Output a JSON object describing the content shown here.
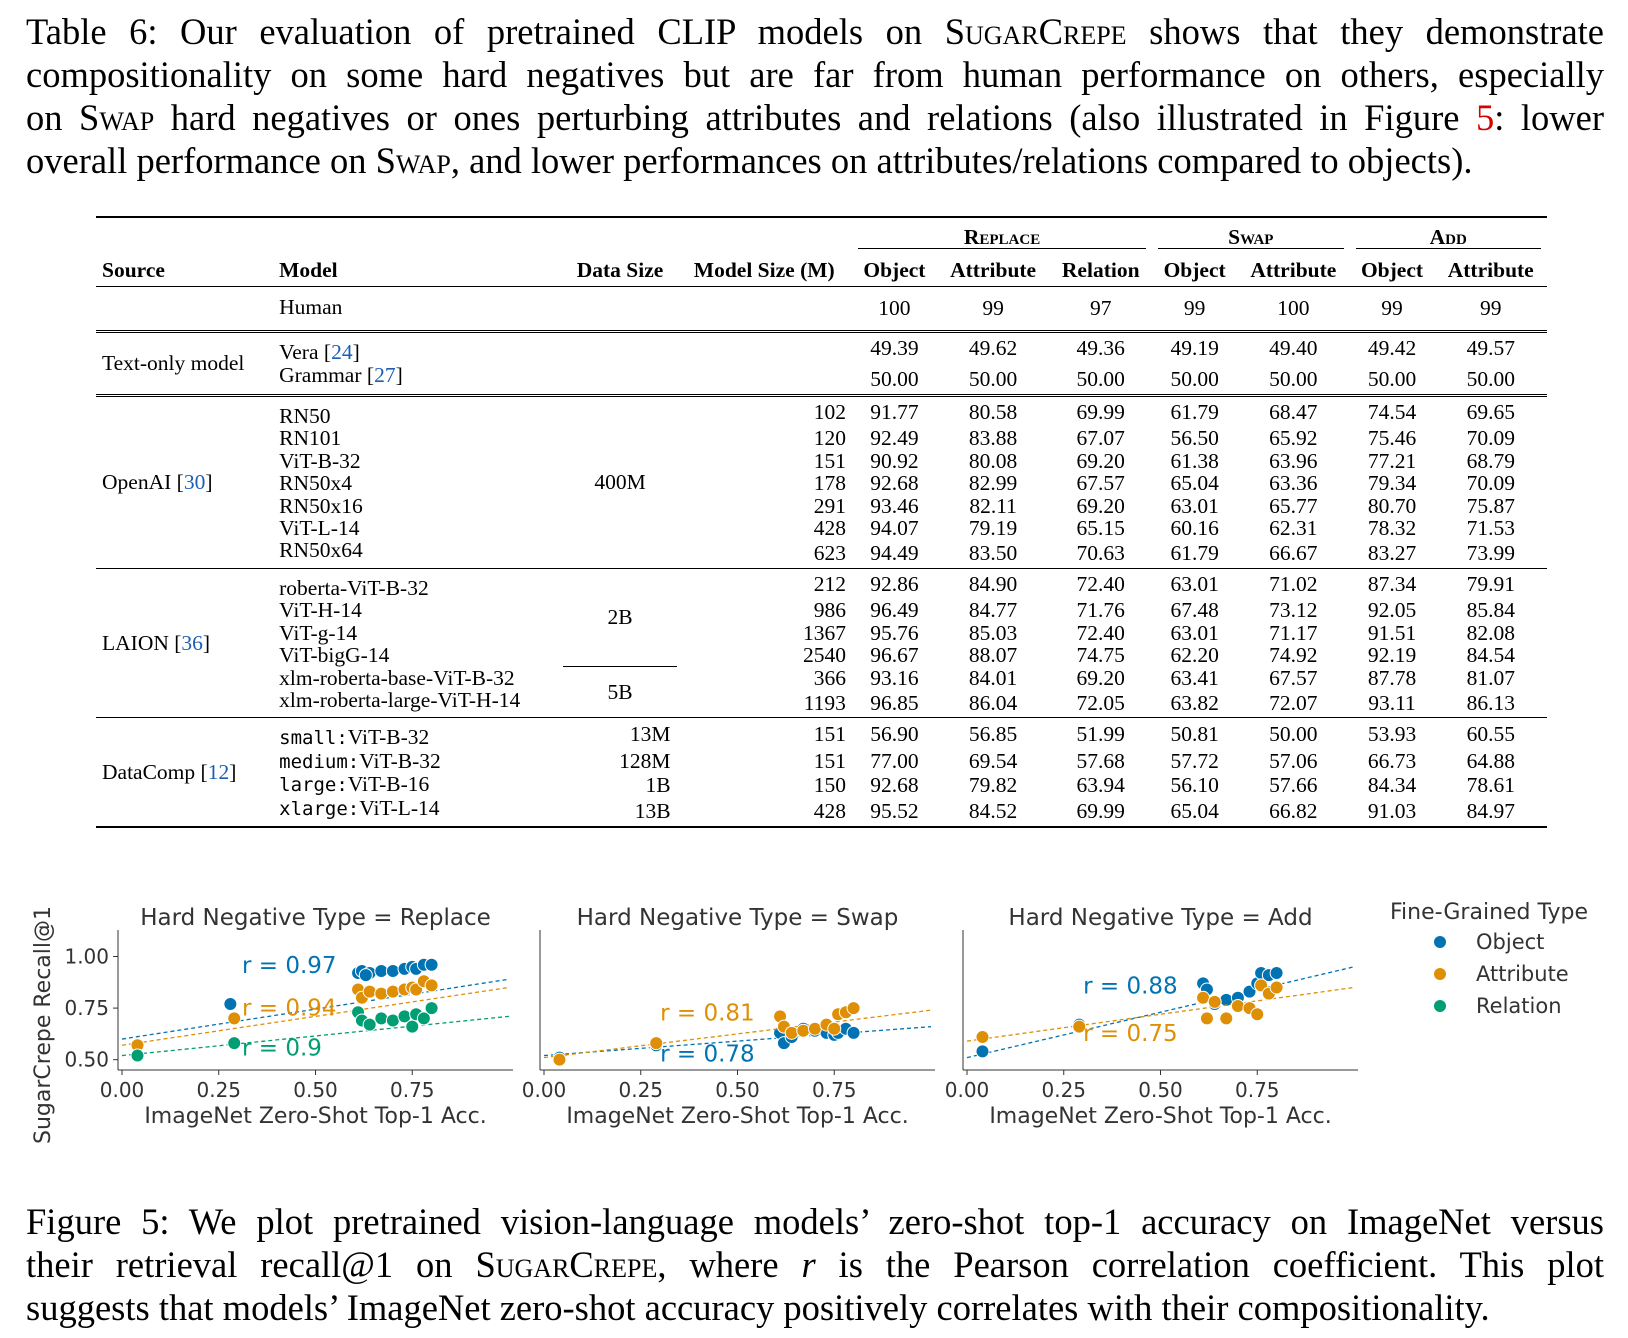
{
  "table_caption": {
    "lines": [
      "Table 6: Our evaluation of pretrained CLIP models on SUGARCREPE shows that they demonstrate",
      "compositionality on some hard negatives but are far from human performance on others, especially",
      "on SWAP hard negatives or ones perturbing attributes and relations (also illustrated in Figure 5: lower",
      "overall performance on SWAP, and lower performances on attributes/relations compared to objects)."
    ],
    "p1a": "Table 6: Our evaluation of pretrained CLIP models on ",
    "p1b": "SugarCrepe",
    "p1c": " shows that they demonstrate",
    "p2": "compositionality on some hard negatives but are far from human performance on others, especially",
    "p3a": "on ",
    "p3b": "Swap",
    "p3c": " hard negatives or ones perturbing attributes and relations (also illustrated in Figure ",
    "p3d": "5",
    "p3e": ": lower",
    "p4a": "overall performance on ",
    "p4b": "Swap",
    "p4c": ", and lower performances on attributes/relations compared to objects)."
  },
  "table": {
    "group_headers": {
      "replace": "Replace",
      "swap": "Swap",
      "add": "Add"
    },
    "columns": {
      "source": "Source",
      "model": "Model",
      "data_size": "Data Size",
      "model_size": "Model Size (M)",
      "r_object": "Object",
      "r_attribute": "Attribute",
      "r_relation": "Relation",
      "s_object": "Object",
      "s_attribute": "Attribute",
      "a_object": "Object",
      "a_attribute": "Attribute"
    },
    "human": {
      "model": "Human",
      "values": [
        "100",
        "99",
        "97",
        "99",
        "100",
        "99",
        "99"
      ]
    },
    "text_only": {
      "source": "Text-only model",
      "rows": [
        {
          "name": "Vera",
          "ref": "24",
          "values": [
            "49.39",
            "49.62",
            "49.36",
            "49.19",
            "49.40",
            "49.42",
            "49.57"
          ]
        },
        {
          "name": "Grammar",
          "ref": "27",
          "values": [
            "50.00",
            "50.00",
            "50.00",
            "50.00",
            "50.00",
            "50.00",
            "50.00"
          ]
        }
      ]
    },
    "openai": {
      "source": "OpenAI",
      "ref": "30",
      "data_size": "400M",
      "rows": [
        {
          "model": "RN50",
          "size": "102",
          "values": [
            "91.77",
            "80.58",
            "69.99",
            "61.79",
            "68.47",
            "74.54",
            "69.65"
          ]
        },
        {
          "model": "RN101",
          "size": "120",
          "values": [
            "92.49",
            "83.88",
            "67.07",
            "56.50",
            "65.92",
            "75.46",
            "70.09"
          ]
        },
        {
          "model": "ViT-B-32",
          "size": "151",
          "values": [
            "90.92",
            "80.08",
            "69.20",
            "61.38",
            "63.96",
            "77.21",
            "68.79"
          ]
        },
        {
          "model": "RN50x4",
          "size": "178",
          "values": [
            "92.68",
            "82.99",
            "67.57",
            "65.04",
            "63.36",
            "79.34",
            "70.09"
          ]
        },
        {
          "model": "RN50x16",
          "size": "291",
          "values": [
            "93.46",
            "82.11",
            "69.20",
            "63.01",
            "65.77",
            "80.70",
            "75.87"
          ]
        },
        {
          "model": "ViT-L-14",
          "size": "428",
          "values": [
            "94.07",
            "79.19",
            "65.15",
            "60.16",
            "62.31",
            "78.32",
            "71.53"
          ]
        },
        {
          "model": "RN50x64",
          "size": "623",
          "values": [
            "94.49",
            "83.50",
            "70.63",
            "61.79",
            "66.67",
            "83.27",
            "73.99"
          ]
        }
      ]
    },
    "laion": {
      "source": "LAION",
      "ref": "36",
      "data_size_a": "2B",
      "data_size_b": "5B",
      "rows": [
        {
          "model": "roberta-ViT-B-32",
          "size": "212",
          "values": [
            "92.86",
            "84.90",
            "72.40",
            "63.01",
            "71.02",
            "87.34",
            "79.91"
          ]
        },
        {
          "model": "ViT-H-14",
          "size": "986",
          "values": [
            "96.49",
            "84.77",
            "71.76",
            "67.48",
            "73.12",
            "92.05",
            "85.84"
          ]
        },
        {
          "model": "ViT-g-14",
          "size": "1367",
          "values": [
            "95.76",
            "85.03",
            "72.40",
            "63.01",
            "71.17",
            "91.51",
            "82.08"
          ]
        },
        {
          "model": "ViT-bigG-14",
          "size": "2540",
          "values": [
            "96.67",
            "88.07",
            "74.75",
            "62.20",
            "74.92",
            "92.19",
            "84.54"
          ]
        },
        {
          "model": "xlm-roberta-base-ViT-B-32",
          "size": "366",
          "values": [
            "93.16",
            "84.01",
            "69.20",
            "63.41",
            "67.57",
            "87.78",
            "81.07"
          ]
        },
        {
          "model": "xlm-roberta-large-ViT-H-14",
          "size": "1193",
          "values": [
            "96.85",
            "86.04",
            "72.05",
            "63.82",
            "72.07",
            "93.11",
            "86.13"
          ]
        }
      ]
    },
    "datacomp": {
      "source": "DataComp",
      "ref": "12",
      "rows": [
        {
          "prefix": "small",
          "model": "ViT-B-32",
          "data_size": "13M",
          "size": "151",
          "values": [
            "56.90",
            "56.85",
            "51.99",
            "50.81",
            "50.00",
            "53.93",
            "60.55"
          ]
        },
        {
          "prefix": "medium",
          "model": "ViT-B-32",
          "data_size": "128M",
          "size": "151",
          "values": [
            "77.00",
            "69.54",
            "57.68",
            "57.72",
            "57.06",
            "66.73",
            "64.88"
          ]
        },
        {
          "prefix": "large",
          "model": "ViT-B-16",
          "data_size": "1B",
          "size": "150",
          "values": [
            "92.68",
            "79.82",
            "63.94",
            "56.10",
            "57.66",
            "84.34",
            "78.61"
          ]
        },
        {
          "prefix": "xlarge",
          "model": "ViT-L-14",
          "data_size": "13B",
          "size": "428",
          "values": [
            "95.52",
            "84.52",
            "69.99",
            "65.04",
            "66.82",
            "91.03",
            "84.97"
          ]
        }
      ]
    }
  },
  "chart_data": {
    "type": "scatter",
    "xlabel": "ImageNet Zero-Shot Top-1 Acc.",
    "ylabel": "SugarCrepe Recall@1",
    "xlim": [
      0,
      1
    ],
    "ylim": [
      0.45,
      1.08
    ],
    "xticks": [
      "0.00",
      "0.25",
      "0.50",
      "0.75"
    ],
    "yticks": [
      "0.50",
      "0.75",
      "1.00"
    ],
    "legend": {
      "title": "Fine-Grained Type",
      "placement": "right",
      "entries": [
        "Object",
        "Attribute",
        "Relation"
      ]
    },
    "colors": {
      "Object": "#0173b2",
      "Attribute": "#de8f05",
      "Relation": "#029e73"
    },
    "panels": [
      {
        "title": "Hard Negative Type = Replace",
        "series": [
          {
            "name": "Object",
            "r_label": "r = 0.97",
            "fit": [
              0.6,
              0.89
            ],
            "points": [
              [
                0.28,
                0.77
              ],
              [
                0.61,
                0.92
              ],
              [
                0.62,
                0.93
              ],
              [
                0.64,
                0.92
              ],
              [
                0.67,
                0.93
              ],
              [
                0.7,
                0.93
              ],
              [
                0.73,
                0.94
              ],
              [
                0.75,
                0.95
              ],
              [
                0.76,
                0.94
              ],
              [
                0.78,
                0.96
              ],
              [
                0.8,
                0.96
              ],
              [
                0.63,
                0.91
              ]
            ]
          },
          {
            "name": "Attribute",
            "r_label": "r = 0.94",
            "fit": [
              0.57,
              0.85
            ],
            "points": [
              [
                0.04,
                0.57
              ],
              [
                0.29,
                0.7
              ],
              [
                0.61,
                0.84
              ],
              [
                0.62,
                0.8
              ],
              [
                0.64,
                0.83
              ],
              [
                0.67,
                0.82
              ],
              [
                0.7,
                0.83
              ],
              [
                0.73,
                0.84
              ],
              [
                0.75,
                0.85
              ],
              [
                0.76,
                0.84
              ],
              [
                0.78,
                0.88
              ],
              [
                0.8,
                0.86
              ]
            ]
          },
          {
            "name": "Relation",
            "r_label": "r = 0.9",
            "fit": [
              0.52,
              0.71
            ],
            "points": [
              [
                0.04,
                0.52
              ],
              [
                0.29,
                0.58
              ],
              [
                0.61,
                0.73
              ],
              [
                0.62,
                0.69
              ],
              [
                0.64,
                0.67
              ],
              [
                0.67,
                0.7
              ],
              [
                0.7,
                0.69
              ],
              [
                0.73,
                0.71
              ],
              [
                0.75,
                0.66
              ],
              [
                0.76,
                0.72
              ],
              [
                0.78,
                0.7
              ],
              [
                0.8,
                0.75
              ]
            ]
          }
        ]
      },
      {
        "title": "Hard Negative Type = Swap",
        "series": [
          {
            "name": "Object",
            "r_label": "r = 0.78",
            "fit": [
              0.52,
              0.66
            ],
            "points": [
              [
                0.04,
                0.51
              ],
              [
                0.29,
                0.57
              ],
              [
                0.61,
                0.63
              ],
              [
                0.62,
                0.58
              ],
              [
                0.64,
                0.61
              ],
              [
                0.67,
                0.65
              ],
              [
                0.7,
                0.64
              ],
              [
                0.73,
                0.63
              ],
              [
                0.75,
                0.62
              ],
              [
                0.76,
                0.63
              ],
              [
                0.78,
                0.65
              ],
              [
                0.8,
                0.63
              ]
            ]
          },
          {
            "name": "Attribute",
            "r_label": "r = 0.81",
            "fit": [
              0.51,
              0.74
            ],
            "points": [
              [
                0.04,
                0.5
              ],
              [
                0.29,
                0.58
              ],
              [
                0.61,
                0.71
              ],
              [
                0.62,
                0.66
              ],
              [
                0.64,
                0.63
              ],
              [
                0.67,
                0.64
              ],
              [
                0.7,
                0.65
              ],
              [
                0.73,
                0.67
              ],
              [
                0.75,
                0.65
              ],
              [
                0.76,
                0.72
              ],
              [
                0.78,
                0.73
              ],
              [
                0.8,
                0.75
              ]
            ]
          }
        ]
      },
      {
        "title": "Hard Negative Type = Add",
        "series": [
          {
            "name": "Object",
            "r_label": "r = 0.88",
            "fit": [
              0.51,
              0.95
            ],
            "points": [
              [
                0.04,
                0.54
              ],
              [
                0.29,
                0.67
              ],
              [
                0.61,
                0.87
              ],
              [
                0.62,
                0.84
              ],
              [
                0.64,
                0.77
              ],
              [
                0.67,
                0.79
              ],
              [
                0.7,
                0.8
              ],
              [
                0.73,
                0.83
              ],
              [
                0.75,
                0.87
              ],
              [
                0.76,
                0.92
              ],
              [
                0.78,
                0.91
              ],
              [
                0.8,
                0.92
              ]
            ]
          },
          {
            "name": "Attribute",
            "r_label": "r = 0.75",
            "fit": [
              0.59,
              0.85
            ],
            "points": [
              [
                0.04,
                0.61
              ],
              [
                0.29,
                0.66
              ],
              [
                0.61,
                0.8
              ],
              [
                0.62,
                0.7
              ],
              [
                0.64,
                0.78
              ],
              [
                0.67,
                0.7
              ],
              [
                0.7,
                0.76
              ],
              [
                0.73,
                0.75
              ],
              [
                0.75,
                0.72
              ],
              [
                0.76,
                0.86
              ],
              [
                0.78,
                0.82
              ],
              [
                0.8,
                0.85
              ]
            ]
          }
        ]
      }
    ]
  },
  "figure_caption": {
    "p1": "Figure 5: We plot pretrained vision-language models’ zero-shot top-1 accuracy on ImageNet versus",
    "p2a": "their retrieval recall@1 on ",
    "p2b": "SugarCrepe",
    "p2c": ", where ",
    "p2d": "r",
    "p2e": " is the Pearson correlation coefficient. This plot",
    "p3": "suggests that models’ ImageNet zero-shot accuracy positively correlates with their compositionality."
  }
}
